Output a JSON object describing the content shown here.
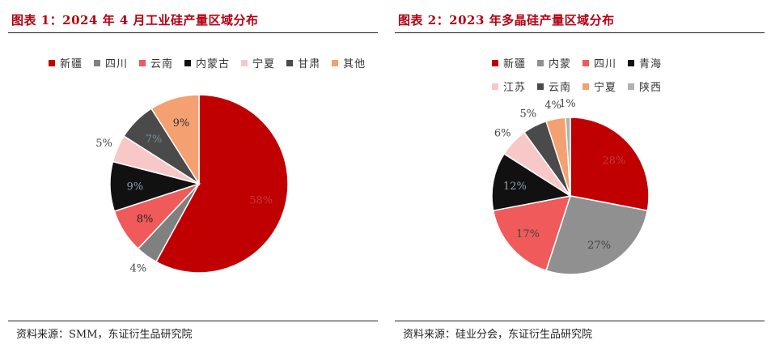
{
  "charts": [
    {
      "title": "图表 1：2024 年 4 月工业硅产量区域分布",
      "source": "资料来源：SMM，东证衍生品研究院"
    },
    {
      "title": "图表 2：2023 年多晶硅产量区域分布",
      "source": "资料来源：硅业分会，东证衍生品研究院"
    }
  ],
  "chart_data": [
    {
      "type": "pie",
      "title": "图表 1：2024 年 4 月工业硅产量区域分布",
      "categories": [
        "新疆",
        "四川",
        "云南",
        "内蒙古",
        "宁夏",
        "甘肃",
        "其他"
      ],
      "values": [
        58,
        4,
        8,
        9,
        5,
        7,
        9
      ],
      "labels": [
        "58%",
        "4%",
        "8%",
        "9%",
        "5%",
        "7%",
        "9%"
      ],
      "colors": [
        "#c00000",
        "#808080",
        "#f05a5a",
        "#111111",
        "#f8c8c8",
        "#4a4a4a",
        "#f4a070"
      ],
      "legend_position": "top",
      "start_angle": "12 o'clock",
      "direction": "clockwise"
    },
    {
      "type": "pie",
      "title": "图表 2：2023 年多晶硅产量区域分布",
      "categories": [
        "新疆",
        "内蒙",
        "四川",
        "青海",
        "江苏",
        "云南",
        "宁夏",
        "陕西"
      ],
      "values": [
        28,
        27,
        17,
        12,
        6,
        5,
        4,
        1
      ],
      "labels": [
        "28%",
        "27%",
        "17%",
        "12%",
        "6%",
        "5%",
        "4%",
        "1%"
      ],
      "colors": [
        "#c00000",
        "#909090",
        "#f05a5a",
        "#111111",
        "#f8c8c8",
        "#4a4a4a",
        "#f4a070",
        "#b0b0b0"
      ],
      "legend_position": "top",
      "start_angle": "12 o'clock",
      "direction": "clockwise"
    }
  ]
}
